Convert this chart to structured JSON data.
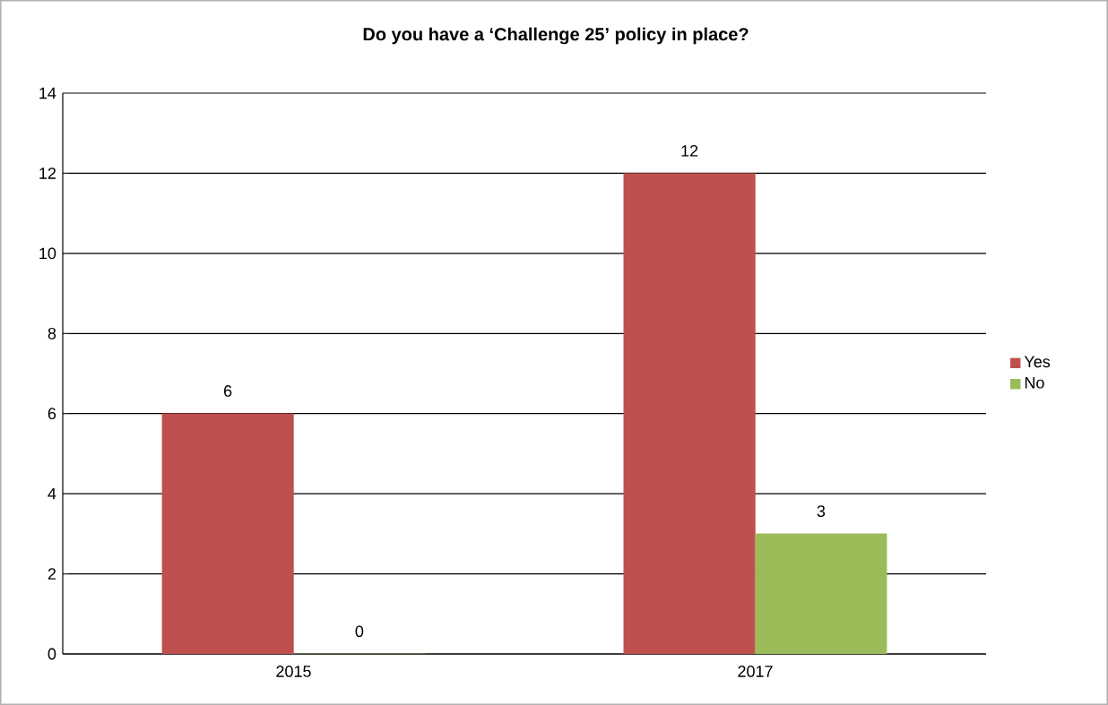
{
  "chart_data": {
    "type": "bar",
    "title": "Do you have a ‘Challenge 25’ policy in place?",
    "categories": [
      "2015",
      "2017"
    ],
    "series": [
      {
        "name": "Yes",
        "color": "#c0504d",
        "values": [
          6,
          12
        ]
      },
      {
        "name": "No",
        "color": "#9bbb59",
        "values": [
          0,
          3
        ]
      }
    ],
    "ylim": [
      0,
      14
    ],
    "yticks": [
      0,
      2,
      4,
      6,
      8,
      10,
      12,
      14
    ],
    "grid": "y",
    "legend": "right",
    "data_labels": true
  }
}
